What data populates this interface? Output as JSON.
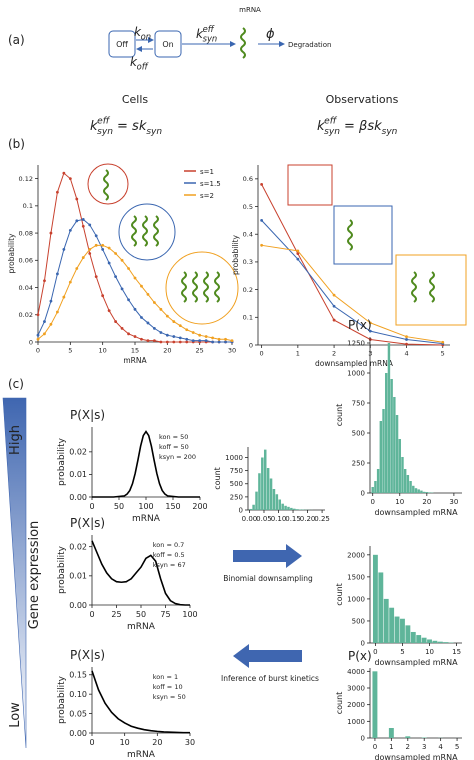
{
  "panel_labels": [
    "(a)",
    "(b)",
    "(c)"
  ],
  "diagram": {
    "off": "Off",
    "on": "On",
    "k_on": [
      "k",
      "on"
    ],
    "k_off": [
      "k",
      "off"
    ],
    "k_syn_eff": [
      "k",
      "syn",
      "eff"
    ],
    "phi": "ϕ",
    "mrna": "mRNA",
    "degradation": "Degradation"
  },
  "cells": {
    "title": "Cells",
    "formula": [
      "k",
      "syn",
      "eff",
      "= sk",
      "syn"
    ]
  },
  "observations": {
    "title": "Observations",
    "formula": [
      "k",
      "syn",
      "eff",
      "= βsk",
      "syn"
    ]
  },
  "gene_expression": {
    "label": "Gene expression",
    "high": "High",
    "low": "Low"
  },
  "arrows": {
    "forward": "Binomial downsampling",
    "backward": "Inference of burst kinetics"
  },
  "chart_data": [
    {
      "type": "line",
      "x_label": "mRNA",
      "y_label": "probability",
      "markers": true,
      "legend": "upper right",
      "x": [
        0,
        1,
        2,
        3,
        4,
        5,
        6,
        7,
        8,
        9,
        10,
        11,
        12,
        13,
        14,
        15,
        16,
        17,
        18,
        19,
        20,
        21,
        22,
        23,
        24,
        25,
        26,
        27,
        28,
        29,
        30
      ],
      "xlim": [
        0,
        30
      ],
      "xticks": [
        0,
        5,
        10,
        15,
        20,
        25,
        30
      ],
      "ylim": [
        0,
        0.13
      ],
      "yticks": [
        0,
        0.02,
        0.04,
        0.06,
        0.08,
        0.1,
        0.12
      ],
      "series": [
        {
          "name": "s=1",
          "color": "#c8412e",
          "values": [
            0.02,
            0.045,
            0.08,
            0.11,
            0.124,
            0.12,
            0.105,
            0.085,
            0.065,
            0.048,
            0.034,
            0.023,
            0.015,
            0.01,
            0.006,
            0.004,
            0.002,
            0.001,
            0.001,
            0,
            0,
            0,
            0,
            0,
            0,
            0,
            0,
            0,
            0,
            0,
            0
          ]
        },
        {
          "name": "s=1.5",
          "color": "#3a66b0",
          "values": [
            0.005,
            0.015,
            0.03,
            0.05,
            0.068,
            0.082,
            0.089,
            0.09,
            0.086,
            0.078,
            0.068,
            0.058,
            0.048,
            0.039,
            0.031,
            0.024,
            0.018,
            0.014,
            0.01,
            0.007,
            0.005,
            0.004,
            0.003,
            0.002,
            0.001,
            0.001,
            0.001,
            0,
            0,
            0,
            0
          ]
        },
        {
          "name": "s=2",
          "color": "#f0a020",
          "values": [
            0.002,
            0.006,
            0.013,
            0.022,
            0.033,
            0.044,
            0.054,
            0.062,
            0.068,
            0.071,
            0.071,
            0.069,
            0.065,
            0.06,
            0.054,
            0.047,
            0.041,
            0.035,
            0.029,
            0.024,
            0.019,
            0.015,
            0.012,
            0.009,
            0.007,
            0.005,
            0.004,
            0.003,
            0.002,
            0.002,
            0.001
          ]
        }
      ]
    },
    {
      "type": "line",
      "x_label": "downsampled mRNA",
      "y_label": "probability",
      "markers": true,
      "x": [
        0,
        1,
        2,
        3,
        4,
        5
      ],
      "xlim": [
        -0.1,
        5.2
      ],
      "xticks": [
        0,
        1,
        2,
        3,
        4,
        5
      ],
      "ylim": [
        0,
        0.65
      ],
      "yticks": [
        0,
        0.1,
        0.2,
        0.3,
        0.4,
        0.5,
        0.6
      ],
      "series": [
        {
          "color": "#c8412e",
          "values": [
            0.58,
            0.33,
            0.09,
            0.02,
            0.003,
            0
          ]
        },
        {
          "color": "#3a66b0",
          "values": [
            0.45,
            0.31,
            0.14,
            0.05,
            0.02,
            0.005
          ]
        },
        {
          "color": "#f0a020",
          "values": [
            0.36,
            0.34,
            0.18,
            0.08,
            0.03,
            0.01
          ]
        }
      ]
    },
    {
      "type": "line",
      "title": "P(X|s)",
      "x_label": "mRNA",
      "y_label": "probability",
      "annotations": [
        "kon = 50",
        "koff = 50",
        "ksyn = 200"
      ],
      "x": [
        0,
        20,
        40,
        60,
        65,
        70,
        75,
        80,
        85,
        90,
        95,
        100,
        105,
        110,
        115,
        120,
        125,
        130,
        135,
        140,
        160,
        180,
        200
      ],
      "xlim": [
        0,
        200
      ],
      "xticks": [
        0,
        50,
        100,
        150,
        200
      ],
      "ylim": [
        0,
        0.031
      ],
      "yticks": [
        {
          "value": 0,
          "label": "0.00"
        },
        0.01,
        0.02
      ],
      "series": [
        {
          "color": "#000000",
          "values": [
            0,
            0,
            0,
            0.0005,
            0.0013,
            0.0029,
            0.0059,
            0.0105,
            0.0163,
            0.0225,
            0.0272,
            0.029,
            0.0272,
            0.0225,
            0.0163,
            0.0105,
            0.0059,
            0.0029,
            0.0013,
            0.0005,
            0,
            0,
            0
          ]
        }
      ]
    },
    {
      "type": "line",
      "title": "P(X|s)",
      "x_label": "mRNA",
      "y_label": "probability",
      "annotations": [
        "kon = 0.7",
        "koff = 0.5",
        "ksyn = 67"
      ],
      "x": [
        0,
        5,
        10,
        15,
        20,
        25,
        30,
        35,
        40,
        45,
        50,
        55,
        60,
        65,
        70,
        75,
        80,
        85,
        90,
        95,
        100
      ],
      "xlim": [
        0,
        100
      ],
      "xticks": [
        0,
        25,
        50,
        75,
        100
      ],
      "ylim": [
        0,
        0.024
      ],
      "yticks": [
        {
          "value": 0,
          "label": "0.00"
        },
        0.01,
        0.02
      ],
      "series": [
        {
          "color": "#000000",
          "values": [
            0.022,
            0.018,
            0.014,
            0.011,
            0.009,
            0.008,
            0.0078,
            0.008,
            0.009,
            0.011,
            0.013,
            0.016,
            0.017,
            0.015,
            0.009,
            0.004,
            0.0015,
            0.0005,
            0.0001,
            0,
            0
          ]
        }
      ]
    },
    {
      "type": "line",
      "title": "P(X|s)",
      "x_label": "mRNA",
      "y_label": "probability",
      "annotations": [
        "kon = 1",
        "koff = 10",
        "ksyn = 50"
      ],
      "x": [
        0,
        2,
        4,
        6,
        8,
        10,
        12,
        14,
        16,
        18,
        20,
        22,
        24,
        26,
        28,
        30
      ],
      "xlim": [
        0,
        30
      ],
      "xticks": [
        0,
        10,
        20,
        30
      ],
      "ylim": [
        0,
        0.17
      ],
      "yticks": [
        {
          "value": 0,
          "label": "0.00"
        },
        0.05,
        {
          "value": 0.1,
          "label": "0.10"
        },
        0.15
      ],
      "series": [
        {
          "color": "#000000",
          "values": [
            0.16,
            0.111,
            0.0767,
            0.0531,
            0.0367,
            0.0259,
            0.0175,
            0.0124,
            0.0086,
            0.006,
            0.0042,
            0.0029,
            0.002,
            0.0014,
            0.0009,
            0.0007
          ]
        }
      ]
    },
    {
      "type": "histogram",
      "y_label": "count",
      "color": "#5fb59a",
      "bins": [
        0,
        0.01,
        0.02,
        0.03,
        0.04,
        0.05,
        0.06,
        0.07,
        0.08,
        0.09,
        0.1,
        0.11,
        0.12,
        0.13,
        0.14,
        0.15,
        0.16,
        0.17,
        0.18,
        0.19,
        0.2,
        0.21,
        0.22
      ],
      "counts": [
        20,
        100,
        350,
        700,
        1000,
        1150,
        800,
        600,
        400,
        300,
        200,
        120,
        80,
        60,
        40,
        25,
        15,
        10,
        8,
        5,
        3,
        2
      ],
      "xlim": [
        -0.005,
        0.26
      ],
      "xticks": [
        {
          "value": 0,
          "label": "0.00"
        },
        0.05,
        {
          "value": 0.1,
          "label": "0.10"
        },
        0.15,
        {
          "value": 0.2,
          "label": "0.20"
        },
        0.25
      ],
      "ylim": [
        0,
        1200
      ],
      "yticks": [
        0,
        250,
        500,
        750,
        1000
      ]
    },
    {
      "type": "bar",
      "title": "P(x)",
      "x_label": "downsampled mRNA",
      "y_label": "count",
      "color": "#5fb59a",
      "x": [
        0,
        1,
        2,
        3,
        4,
        5,
        6,
        7,
        8,
        9,
        10,
        11,
        12,
        13,
        14,
        15,
        16,
        17,
        18,
        19,
        20,
        21,
        22
      ],
      "values": [
        50,
        100,
        200,
        600,
        700,
        1000,
        1250,
        950,
        800,
        650,
        450,
        300,
        200,
        150,
        100,
        60,
        40,
        30,
        20,
        10,
        8,
        5,
        3
      ],
      "xlim": [
        -1,
        33
      ],
      "xticks": [
        0,
        10,
        20,
        30
      ],
      "ylim": [
        0,
        1300
      ],
      "yticks": [
        0,
        250,
        500,
        750,
        1000,
        1250
      ]
    },
    {
      "type": "bar",
      "x_label": "downsampled mRNA",
      "y_label": "count",
      "color": "#5fb59a",
      "x": [
        0,
        1,
        2,
        3,
        4,
        5,
        6,
        7,
        8,
        9,
        10,
        11,
        12,
        13,
        14
      ],
      "values": [
        2000,
        1600,
        1000,
        800,
        600,
        550,
        400,
        250,
        180,
        120,
        80,
        50,
        30,
        20,
        10
      ],
      "xlim": [
        -1,
        16
      ],
      "xticks": [
        0,
        5,
        10,
        15
      ],
      "ylim": [
        0,
        2200
      ],
      "yticks": [
        0,
        500,
        1000,
        1500,
        2000
      ]
    },
    {
      "type": "bar",
      "title": "P(x)",
      "x_label": "downsampled mRNA",
      "y_label": "count",
      "color": "#5fb59a",
      "bar_fraction": 0.3,
      "x": [
        0,
        1,
        2,
        3,
        4,
        5
      ],
      "values": [
        4000,
        600,
        100,
        30,
        10,
        3
      ],
      "xlim": [
        -0.3,
        5.3
      ],
      "xticks": [
        0,
        1,
        2,
        3,
        4,
        5
      ],
      "ylim": [
        0,
        4200
      ],
      "yticks": [
        0,
        1000,
        2000,
        3000,
        4000
      ]
    }
  ]
}
